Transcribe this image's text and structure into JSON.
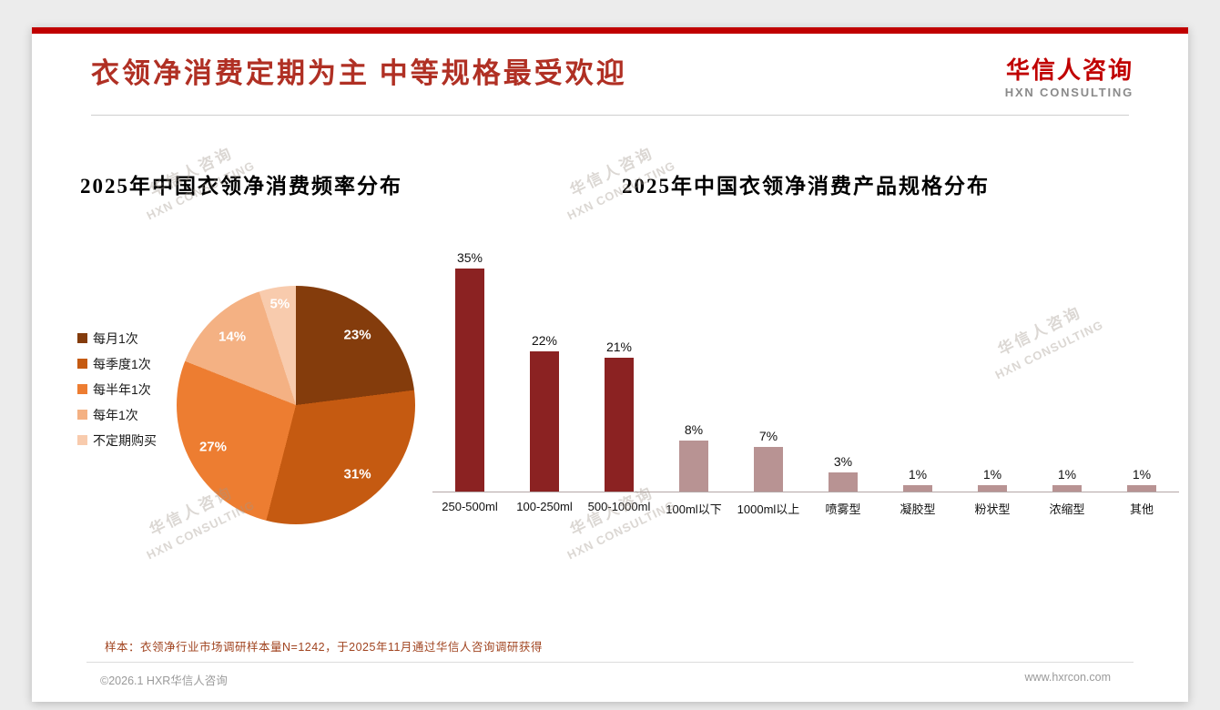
{
  "header": {
    "title": "衣领净消费定期为主 中等规格最受欢迎",
    "logo_cn": "华信人咨询",
    "logo_en": "HXN CONSULTING"
  },
  "watermark": {
    "line1": "华信人咨询",
    "line2": "HXN CONSULTING"
  },
  "chart_data": [
    {
      "type": "pie",
      "title": "2025年中国衣领净消费频率分布",
      "labels": [
        "每月1次",
        "每季度1次",
        "每半年1次",
        "每年1次",
        "不定期购买"
      ],
      "values": [
        23,
        31,
        27,
        14,
        5
      ],
      "unit": "%",
      "colors": [
        "#843C0C",
        "#C55A11",
        "#ED7D31",
        "#F4B183",
        "#F8CBAD"
      ],
      "legend_position": "left",
      "start_angle": "top",
      "direction": "clockwise"
    },
    {
      "type": "bar",
      "title": "2025年中国衣领净消费产品规格分布",
      "categories": [
        "250-500ml",
        "100-250ml",
        "500-1000ml",
        "100ml以下",
        "1000ml以上",
        "喷雾型",
        "凝胶型",
        "粉状型",
        "浓缩型",
        "其他"
      ],
      "values": [
        35,
        22,
        21,
        8,
        7,
        3,
        1,
        1,
        1,
        1
      ],
      "unit": "%",
      "ylim": [
        0,
        37
      ],
      "grid": false,
      "legend": false,
      "highlight_count": 3,
      "color_primary": "#8B2222",
      "color_secondary": "#B89393"
    }
  ],
  "footnote": "样本：衣领净行业市场调研样本量N=1242，于2025年11月通过华信人咨询调研获得",
  "footer": {
    "left": "©2026.1 HXR华信人咨询",
    "right": "www.hxrcon.com"
  },
  "colors": {
    "accent_red": "#C00000",
    "title_red": "#B03024",
    "logo_red": "#C00000",
    "footnote_brown": "#A0431F"
  }
}
